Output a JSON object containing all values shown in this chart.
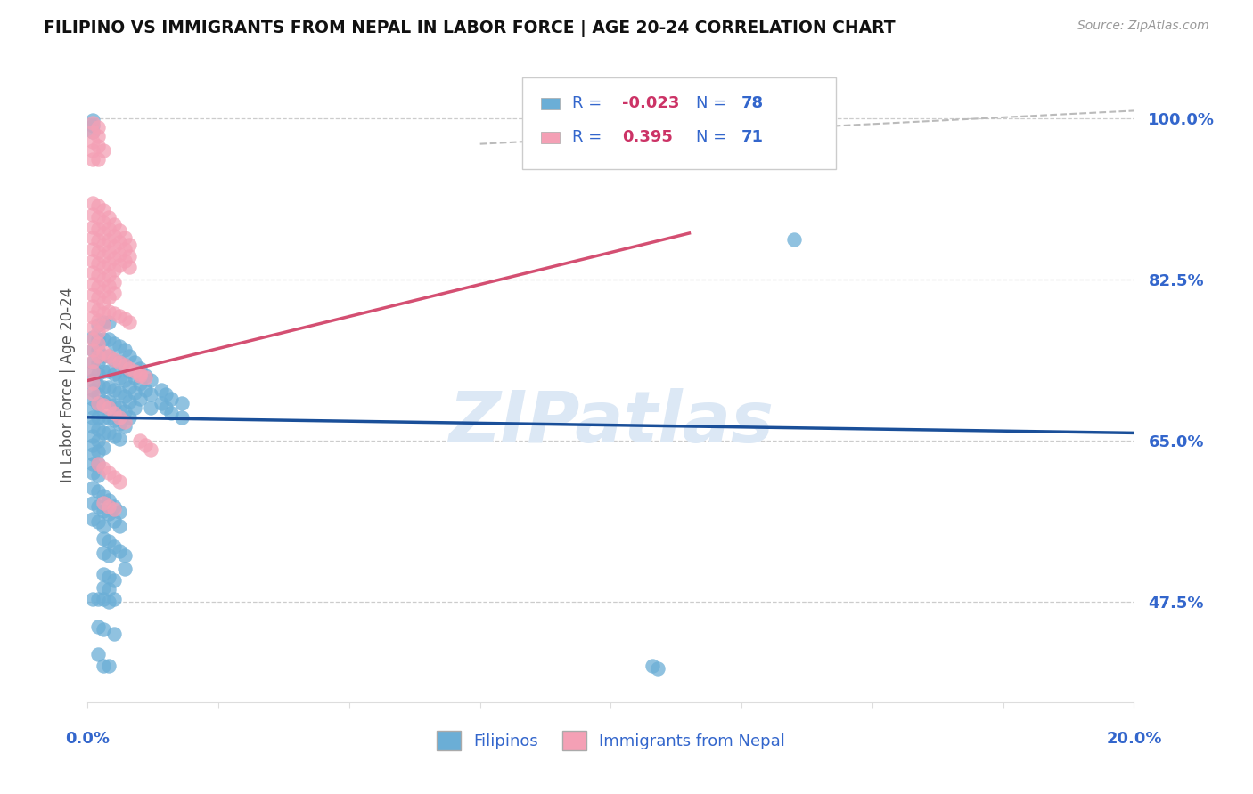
{
  "title": "FILIPINO VS IMMIGRANTS FROM NEPAL IN LABOR FORCE | AGE 20-24 CORRELATION CHART",
  "source": "Source: ZipAtlas.com",
  "ylabel": "In Labor Force | Age 20-24",
  "watermark": "ZIPatlas",
  "xmin": 0.0,
  "xmax": 0.2,
  "ymin": 0.365,
  "ymax": 1.055,
  "ytick_positions": [
    0.475,
    0.65,
    0.825,
    1.0
  ],
  "ytick_labels": [
    "47.5%",
    "65.0%",
    "82.5%",
    "100.0%"
  ],
  "color_blue": "#6baed6",
  "color_pink": "#f4a0b5",
  "trendline_blue_color": "#1a4f99",
  "trendline_pink_color": "#d44f72",
  "trendline_dashed_color": "#bbbbbb",
  "blue_trend_x": [
    0.0,
    0.2
  ],
  "blue_trend_y": [
    0.675,
    0.658
  ],
  "pink_trend_x": [
    0.0,
    0.115
  ],
  "pink_trend_y": [
    0.715,
    0.875
  ],
  "dashed_trend_x": [
    0.075,
    0.2
  ],
  "dashed_trend_y": [
    0.972,
    1.008
  ],
  "blue_scatter": [
    [
      0.001,
      0.998
    ],
    [
      0.001,
      0.992
    ],
    [
      0.001,
      0.985
    ],
    [
      0.001,
      0.762
    ],
    [
      0.001,
      0.748
    ],
    [
      0.001,
      0.735
    ],
    [
      0.001,
      0.725
    ],
    [
      0.001,
      0.715
    ],
    [
      0.001,
      0.705
    ],
    [
      0.001,
      0.695
    ],
    [
      0.001,
      0.685
    ],
    [
      0.001,
      0.675
    ],
    [
      0.001,
      0.665
    ],
    [
      0.001,
      0.655
    ],
    [
      0.001,
      0.645
    ],
    [
      0.001,
      0.635
    ],
    [
      0.001,
      0.625
    ],
    [
      0.001,
      0.615
    ],
    [
      0.002,
      0.775
    ],
    [
      0.002,
      0.76
    ],
    [
      0.002,
      0.748
    ],
    [
      0.002,
      0.735
    ],
    [
      0.002,
      0.722
    ],
    [
      0.002,
      0.71
    ],
    [
      0.002,
      0.7
    ],
    [
      0.002,
      0.688
    ],
    [
      0.002,
      0.675
    ],
    [
      0.002,
      0.662
    ],
    [
      0.002,
      0.65
    ],
    [
      0.002,
      0.638
    ],
    [
      0.002,
      0.625
    ],
    [
      0.002,
      0.612
    ],
    [
      0.003,
      0.778
    ],
    [
      0.003,
      0.76
    ],
    [
      0.003,
      0.742
    ],
    [
      0.003,
      0.725
    ],
    [
      0.003,
      0.708
    ],
    [
      0.003,
      0.692
    ],
    [
      0.003,
      0.675
    ],
    [
      0.003,
      0.658
    ],
    [
      0.003,
      0.642
    ],
    [
      0.004,
      0.778
    ],
    [
      0.004,
      0.76
    ],
    [
      0.004,
      0.742
    ],
    [
      0.004,
      0.725
    ],
    [
      0.004,
      0.708
    ],
    [
      0.004,
      0.692
    ],
    [
      0.004,
      0.675
    ],
    [
      0.004,
      0.658
    ],
    [
      0.005,
      0.755
    ],
    [
      0.005,
      0.738
    ],
    [
      0.005,
      0.722
    ],
    [
      0.005,
      0.705
    ],
    [
      0.005,
      0.688
    ],
    [
      0.005,
      0.672
    ],
    [
      0.005,
      0.655
    ],
    [
      0.006,
      0.752
    ],
    [
      0.006,
      0.735
    ],
    [
      0.006,
      0.718
    ],
    [
      0.006,
      0.702
    ],
    [
      0.006,
      0.685
    ],
    [
      0.006,
      0.668
    ],
    [
      0.006,
      0.652
    ],
    [
      0.007,
      0.748
    ],
    [
      0.007,
      0.732
    ],
    [
      0.007,
      0.715
    ],
    [
      0.007,
      0.698
    ],
    [
      0.007,
      0.682
    ],
    [
      0.007,
      0.665
    ],
    [
      0.008,
      0.742
    ],
    [
      0.008,
      0.725
    ],
    [
      0.008,
      0.708
    ],
    [
      0.008,
      0.692
    ],
    [
      0.008,
      0.675
    ],
    [
      0.009,
      0.735
    ],
    [
      0.009,
      0.718
    ],
    [
      0.009,
      0.702
    ],
    [
      0.009,
      0.685
    ],
    [
      0.01,
      0.728
    ],
    [
      0.01,
      0.712
    ],
    [
      0.01,
      0.695
    ],
    [
      0.011,
      0.72
    ],
    [
      0.011,
      0.705
    ],
    [
      0.012,
      0.715
    ],
    [
      0.012,
      0.7
    ],
    [
      0.012,
      0.685
    ],
    [
      0.014,
      0.705
    ],
    [
      0.014,
      0.69
    ],
    [
      0.015,
      0.7
    ],
    [
      0.015,
      0.685
    ],
    [
      0.016,
      0.695
    ],
    [
      0.016,
      0.68
    ],
    [
      0.018,
      0.69
    ],
    [
      0.018,
      0.675
    ],
    [
      0.001,
      0.598
    ],
    [
      0.001,
      0.582
    ],
    [
      0.001,
      0.565
    ],
    [
      0.002,
      0.595
    ],
    [
      0.002,
      0.578
    ],
    [
      0.002,
      0.562
    ],
    [
      0.003,
      0.59
    ],
    [
      0.003,
      0.573
    ],
    [
      0.003,
      0.557
    ],
    [
      0.004,
      0.585
    ],
    [
      0.004,
      0.57
    ],
    [
      0.005,
      0.578
    ],
    [
      0.005,
      0.563
    ],
    [
      0.006,
      0.572
    ],
    [
      0.006,
      0.557
    ],
    [
      0.003,
      0.543
    ],
    [
      0.003,
      0.528
    ],
    [
      0.004,
      0.54
    ],
    [
      0.004,
      0.525
    ],
    [
      0.005,
      0.535
    ],
    [
      0.006,
      0.53
    ],
    [
      0.007,
      0.525
    ],
    [
      0.007,
      0.51
    ],
    [
      0.003,
      0.505
    ],
    [
      0.003,
      0.49
    ],
    [
      0.004,
      0.502
    ],
    [
      0.004,
      0.488
    ],
    [
      0.005,
      0.498
    ],
    [
      0.001,
      0.478
    ],
    [
      0.002,
      0.478
    ],
    [
      0.003,
      0.478
    ],
    [
      0.004,
      0.475
    ],
    [
      0.005,
      0.478
    ],
    [
      0.002,
      0.448
    ],
    [
      0.003,
      0.445
    ],
    [
      0.005,
      0.44
    ],
    [
      0.002,
      0.418
    ],
    [
      0.003,
      0.405
    ],
    [
      0.004,
      0.405
    ],
    [
      0.135,
      0.868
    ],
    [
      0.108,
      0.405
    ],
    [
      0.109,
      0.402
    ]
  ],
  "pink_scatter": [
    [
      0.001,
      0.995
    ],
    [
      0.001,
      0.985
    ],
    [
      0.001,
      0.975
    ],
    [
      0.001,
      0.965
    ],
    [
      0.001,
      0.955
    ],
    [
      0.002,
      0.99
    ],
    [
      0.002,
      0.98
    ],
    [
      0.002,
      0.97
    ],
    [
      0.002,
      0.955
    ],
    [
      0.003,
      0.965
    ],
    [
      0.001,
      0.908
    ],
    [
      0.001,
      0.895
    ],
    [
      0.001,
      0.882
    ],
    [
      0.001,
      0.87
    ],
    [
      0.001,
      0.858
    ],
    [
      0.001,
      0.845
    ],
    [
      0.001,
      0.832
    ],
    [
      0.001,
      0.82
    ],
    [
      0.001,
      0.808
    ],
    [
      0.001,
      0.796
    ],
    [
      0.001,
      0.784
    ],
    [
      0.001,
      0.772
    ],
    [
      0.001,
      0.76
    ],
    [
      0.001,
      0.748
    ],
    [
      0.001,
      0.736
    ],
    [
      0.001,
      0.725
    ],
    [
      0.001,
      0.713
    ],
    [
      0.001,
      0.701
    ],
    [
      0.002,
      0.905
    ],
    [
      0.002,
      0.892
    ],
    [
      0.002,
      0.88
    ],
    [
      0.002,
      0.867
    ],
    [
      0.002,
      0.855
    ],
    [
      0.002,
      0.842
    ],
    [
      0.002,
      0.83
    ],
    [
      0.002,
      0.817
    ],
    [
      0.002,
      0.805
    ],
    [
      0.002,
      0.792
    ],
    [
      0.002,
      0.78
    ],
    [
      0.002,
      0.768
    ],
    [
      0.002,
      0.755
    ],
    [
      0.002,
      0.742
    ],
    [
      0.003,
      0.9
    ],
    [
      0.003,
      0.887
    ],
    [
      0.003,
      0.875
    ],
    [
      0.003,
      0.862
    ],
    [
      0.003,
      0.85
    ],
    [
      0.003,
      0.838
    ],
    [
      0.003,
      0.825
    ],
    [
      0.003,
      0.812
    ],
    [
      0.003,
      0.8
    ],
    [
      0.003,
      0.788
    ],
    [
      0.003,
      0.775
    ],
    [
      0.004,
      0.892
    ],
    [
      0.004,
      0.88
    ],
    [
      0.004,
      0.867
    ],
    [
      0.004,
      0.855
    ],
    [
      0.004,
      0.842
    ],
    [
      0.004,
      0.83
    ],
    [
      0.004,
      0.818
    ],
    [
      0.004,
      0.805
    ],
    [
      0.005,
      0.885
    ],
    [
      0.005,
      0.872
    ],
    [
      0.005,
      0.86
    ],
    [
      0.005,
      0.848
    ],
    [
      0.005,
      0.835
    ],
    [
      0.005,
      0.822
    ],
    [
      0.005,
      0.81
    ],
    [
      0.006,
      0.878
    ],
    [
      0.006,
      0.865
    ],
    [
      0.006,
      0.852
    ],
    [
      0.006,
      0.84
    ],
    [
      0.007,
      0.87
    ],
    [
      0.007,
      0.858
    ],
    [
      0.007,
      0.845
    ],
    [
      0.008,
      0.862
    ],
    [
      0.008,
      0.85
    ],
    [
      0.008,
      0.838
    ],
    [
      0.002,
      0.69
    ],
    [
      0.003,
      0.688
    ],
    [
      0.004,
      0.685
    ],
    [
      0.005,
      0.68
    ],
    [
      0.006,
      0.675
    ],
    [
      0.007,
      0.67
    ],
    [
      0.002,
      0.625
    ],
    [
      0.003,
      0.62
    ],
    [
      0.004,
      0.615
    ],
    [
      0.005,
      0.61
    ],
    [
      0.006,
      0.605
    ],
    [
      0.003,
      0.745
    ],
    [
      0.004,
      0.742
    ],
    [
      0.005,
      0.738
    ],
    [
      0.006,
      0.735
    ],
    [
      0.007,
      0.732
    ],
    [
      0.008,
      0.728
    ],
    [
      0.009,
      0.725
    ],
    [
      0.01,
      0.72
    ],
    [
      0.004,
      0.79
    ],
    [
      0.005,
      0.788
    ],
    [
      0.006,
      0.785
    ],
    [
      0.007,
      0.782
    ],
    [
      0.008,
      0.778
    ],
    [
      0.003,
      0.582
    ],
    [
      0.004,
      0.578
    ],
    [
      0.005,
      0.575
    ],
    [
      0.01,
      0.65
    ],
    [
      0.011,
      0.645
    ],
    [
      0.012,
      0.64
    ],
    [
      0.01,
      0.722
    ],
    [
      0.011,
      0.718
    ]
  ]
}
